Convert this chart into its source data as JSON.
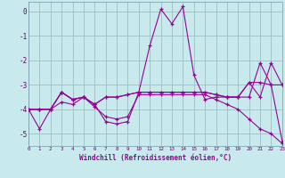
{
  "background_color": "#c8eaec",
  "grid_color": "#9bbfc2",
  "line_color": "#990099",
  "tick_color": "#660066",
  "xlabel": "Windchill (Refroidissement éolien,°C)",
  "xlim": [
    0,
    23
  ],
  "ylim": [
    -5.5,
    0.4
  ],
  "yticks": [
    0,
    -1,
    -2,
    -3,
    -4,
    -5
  ],
  "xticks": [
    0,
    1,
    2,
    3,
    4,
    5,
    6,
    7,
    8,
    9,
    10,
    11,
    12,
    13,
    14,
    15,
    16,
    17,
    18,
    19,
    20,
    21,
    22,
    23
  ],
  "series": [
    {
      "x": [
        0,
        1,
        2,
        3,
        4,
        5,
        6,
        7,
        8,
        9,
        10,
        11,
        12,
        13,
        14,
        15,
        16,
        17,
        18,
        19,
        20,
        21,
        22,
        23
      ],
      "y": [
        -4.0,
        -4.8,
        -4.0,
        -3.7,
        -3.8,
        -3.5,
        -3.9,
        -4.3,
        -4.4,
        -4.3,
        -3.4,
        -3.4,
        -3.4,
        -3.4,
        -3.4,
        -3.4,
        -3.4,
        -3.6,
        -3.8,
        -4.0,
        -4.4,
        -4.8,
        -5.0,
        -5.4
      ]
    },
    {
      "x": [
        0,
        1,
        2,
        3,
        4,
        5,
        6,
        7,
        8,
        9,
        10,
        11,
        12,
        13,
        14,
        15,
        16,
        17,
        18,
        19,
        20,
        21,
        22,
        23
      ],
      "y": [
        -4.0,
        -4.0,
        -4.0,
        -3.3,
        -3.6,
        -3.5,
        -3.8,
        -3.5,
        -3.5,
        -3.4,
        -3.3,
        -3.3,
        -3.3,
        -3.3,
        -3.3,
        -3.3,
        -3.3,
        -3.4,
        -3.5,
        -3.5,
        -2.9,
        -2.9,
        -3.0,
        -3.0
      ]
    },
    {
      "x": [
        0,
        1,
        2,
        3,
        4,
        5,
        6,
        7,
        8,
        9,
        10,
        11,
        12,
        13,
        14,
        15,
        16,
        17,
        18,
        19,
        20,
        21,
        22,
        23
      ],
      "y": [
        -4.0,
        -4.0,
        -4.0,
        -3.3,
        -3.6,
        -3.5,
        -3.8,
        -3.5,
        -3.5,
        -3.4,
        -3.3,
        -3.3,
        -3.3,
        -3.3,
        -3.3,
        -3.3,
        -3.3,
        -3.4,
        -3.5,
        -3.5,
        -2.9,
        -3.5,
        -2.1,
        -3.0
      ]
    },
    {
      "x": [
        0,
        1,
        2,
        3,
        4,
        5,
        6,
        7,
        8,
        9,
        10,
        11,
        12,
        13,
        14,
        15,
        16,
        17,
        18,
        19,
        20,
        21,
        22,
        23
      ],
      "y": [
        -4.0,
        -4.0,
        -4.0,
        -3.3,
        -3.6,
        -3.5,
        -3.8,
        -4.5,
        -4.6,
        -4.5,
        -3.3,
        -1.4,
        0.1,
        -0.5,
        0.2,
        -2.6,
        -3.6,
        -3.5,
        -3.5,
        -3.5,
        -3.5,
        -2.1,
        -3.0,
        -5.3
      ]
    }
  ]
}
